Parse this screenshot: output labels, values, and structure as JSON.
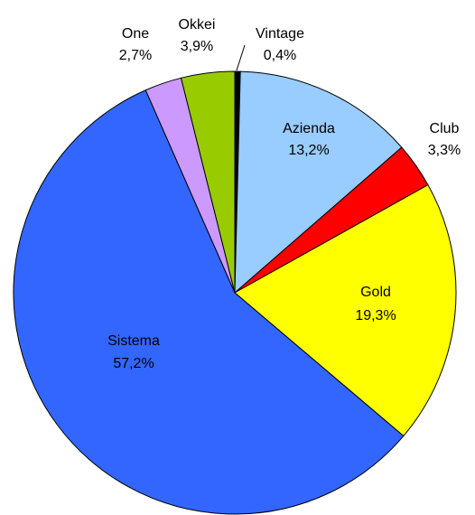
{
  "chart_data": {
    "type": "pie",
    "categories": [
      "Vintage",
      "Azienda",
      "Club",
      "Gold",
      "Sistema",
      "One",
      "Okkei"
    ],
    "values": [
      0.4,
      13.2,
      3.3,
      19.3,
      57.2,
      2.7,
      3.9
    ],
    "value_labels": [
      "0,4%",
      "13,2%",
      "3,3%",
      "19,3%",
      "57,2%",
      "2,7%",
      "3,9%"
    ],
    "colors": [
      "#000000",
      "#99ccff",
      "#ff0000",
      "#ffff00",
      "#3366ff",
      "#cc99ff",
      "#99cc00"
    ]
  }
}
